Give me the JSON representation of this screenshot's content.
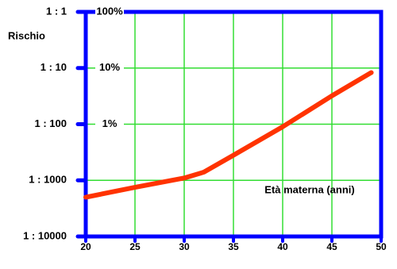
{
  "chart_data": {
    "type": "line",
    "y_label": "Rischio",
    "x_label": "Età materna (anni)",
    "x": [
      20,
      25,
      30,
      32,
      35,
      40,
      45,
      49
    ],
    "series": [
      {
        "color": "#ff3300",
        "values": [
          0.0005,
          0.00075,
          0.0011,
          0.0014,
          0.0028,
          0.009,
          0.032,
          0.083
        ]
      }
    ],
    "xlim": [
      20,
      50
    ],
    "xticks": [
      20,
      25,
      30,
      35,
      40,
      45,
      50
    ],
    "ylim": [
      0.0001,
      1
    ],
    "log_scale": true,
    "yticks": [
      {
        "value": 1,
        "label": "1 : 1"
      },
      {
        "value": 0.1,
        "label": "1 : 10"
      },
      {
        "value": 0.01,
        "label": "1 : 100"
      },
      {
        "value": 0.001,
        "label": "1 : 1000"
      },
      {
        "value": 0.0001,
        "label": "1 : 10000"
      }
    ],
    "y2lim": [
      0.0001,
      1
    ],
    "y2ticks": [
      {
        "value": 1,
        "label": "100%"
      },
      {
        "value": 0.1,
        "label": "10%"
      },
      {
        "value": 0.01,
        "label": "1%"
      }
    ],
    "grid": true,
    "grid_color": "#33dd33",
    "axis_color": "#0000ff"
  }
}
